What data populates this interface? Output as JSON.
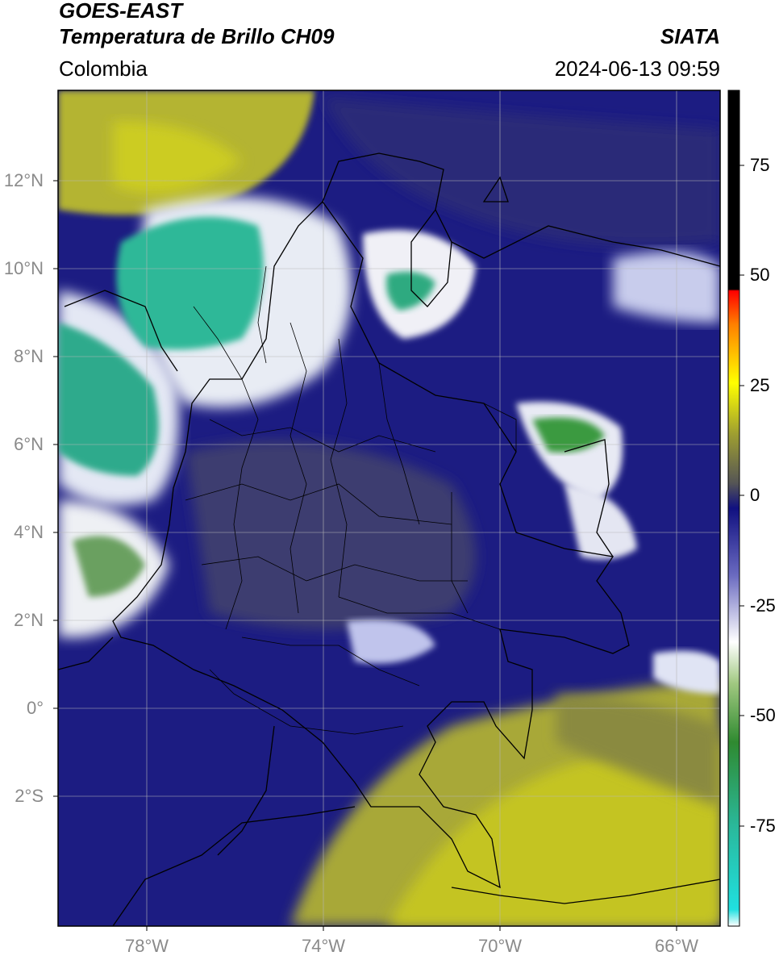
{
  "header": {
    "satellite": "GOES-EAST",
    "product": "Temperatura de Brillo CH09",
    "agency": "SIATA",
    "region": "Colombia",
    "datetime": "2024-06-13 09:59"
  },
  "map": {
    "extent_lon": [
      -80,
      -65
    ],
    "extent_lat": [
      -5,
      14
    ],
    "lat_ticks": [
      "12°N",
      "10°N",
      "8°N",
      "6°N",
      "4°N",
      "2°N",
      "0°",
      "2°S"
    ],
    "lon_ticks": [
      "78°W",
      "74°W",
      "70°W",
      "66°W"
    ],
    "colors": {
      "background_cold": "#1a1a80",
      "warm_dry": "#c8c820",
      "very_cold": "#2ab89a",
      "cloud_white": "#f0f0f5",
      "border": "#000000"
    }
  },
  "colorbar": {
    "ticks": [
      "75",
      "50",
      "25",
      "0",
      "-25",
      "-50",
      "-75"
    ],
    "tick_values": [
      75,
      50,
      25,
      0,
      -25,
      -50,
      -75
    ],
    "range": [
      -96,
      90
    ]
  }
}
